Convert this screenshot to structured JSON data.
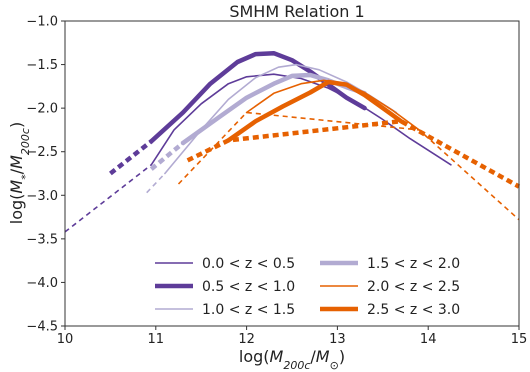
{
  "chart_data": {
    "type": "line",
    "title": "SMHM Relation 1",
    "xlabel": "log(M_200c/M_⊙)",
    "ylabel": "log(M_*/M_200c)",
    "xlim": [
      10,
      15
    ],
    "ylim": [
      -4.5,
      -1.0
    ],
    "x_ticks": [
      10,
      11,
      12,
      13,
      14,
      15
    ],
    "y_ticks": [
      -4.5,
      -4.0,
      -3.5,
      -3.0,
      -2.5,
      -2.0,
      -1.5,
      -1.0
    ],
    "x_tick_labels": [
      "10",
      "11",
      "12",
      "13",
      "14",
      "15"
    ],
    "y_tick_labels": [
      "−4.5",
      "−4.0",
      "−3.5",
      "−3.0",
      "−2.5",
      "−2.0",
      "−1.5",
      "−1.0"
    ],
    "legend_position": "lower-center",
    "series": [
      {
        "name": "0.0 < z < 0.5",
        "color": "#5e3c99",
        "weight": "thin",
        "solid": [
          [
            10.95,
            -2.65
          ],
          [
            11.2,
            -2.25
          ],
          [
            11.5,
            -1.95
          ],
          [
            11.8,
            -1.72
          ],
          [
            12.0,
            -1.64
          ],
          [
            12.3,
            -1.61
          ],
          [
            12.6,
            -1.66
          ],
          [
            12.9,
            -1.77
          ],
          [
            13.2,
            -1.93
          ],
          [
            13.5,
            -2.13
          ],
          [
            13.8,
            -2.35
          ],
          [
            14.1,
            -2.55
          ],
          [
            14.25,
            -2.65
          ]
        ],
        "dashed": [
          [
            10.0,
            -3.42
          ],
          [
            10.95,
            -2.65
          ]
        ]
      },
      {
        "name": "0.5 < z < 1.0",
        "color": "#5e3c99",
        "weight": "thick",
        "solid": [
          [
            10.95,
            -2.38
          ],
          [
            11.3,
            -2.05
          ],
          [
            11.6,
            -1.72
          ],
          [
            11.9,
            -1.47
          ],
          [
            12.1,
            -1.38
          ],
          [
            12.3,
            -1.37
          ],
          [
            12.5,
            -1.45
          ],
          [
            12.7,
            -1.58
          ],
          [
            12.9,
            -1.73
          ],
          [
            13.1,
            -1.88
          ],
          [
            13.3,
            -2.0
          ]
        ],
        "dashed": [
          [
            10.5,
            -2.75
          ],
          [
            10.95,
            -2.38
          ]
        ]
      },
      {
        "name": "1.0 < z < 1.5",
        "color": "#b2abd2",
        "weight": "thin",
        "solid": [
          [
            11.1,
            -2.75
          ],
          [
            11.5,
            -2.25
          ],
          [
            11.8,
            -1.9
          ],
          [
            12.1,
            -1.65
          ],
          [
            12.35,
            -1.53
          ],
          [
            12.55,
            -1.5
          ],
          [
            12.8,
            -1.56
          ],
          [
            13.1,
            -1.7
          ],
          [
            13.35,
            -1.85
          ],
          [
            13.65,
            -2.05
          ]
        ],
        "dashed": [
          [
            10.9,
            -2.97
          ],
          [
            11.1,
            -2.75
          ]
        ]
      },
      {
        "name": "1.5 < z < 2.0",
        "color": "#b2abd2",
        "weight": "thick",
        "solid": [
          [
            11.3,
            -2.4
          ],
          [
            11.7,
            -2.1
          ],
          [
            12.0,
            -1.88
          ],
          [
            12.3,
            -1.72
          ],
          [
            12.5,
            -1.63
          ],
          [
            12.7,
            -1.62
          ],
          [
            12.9,
            -1.68
          ],
          [
            13.1,
            -1.76
          ],
          [
            13.3,
            -1.83
          ]
        ],
        "dashed": [
          [
            10.95,
            -2.7
          ],
          [
            11.3,
            -2.4
          ]
        ]
      },
      {
        "name": "2.0 < z < 2.5",
        "color": "#e66101",
        "weight": "thin",
        "solid": [
          [
            12.0,
            -2.05
          ],
          [
            12.3,
            -1.83
          ],
          [
            12.6,
            -1.72
          ],
          [
            12.85,
            -1.68
          ],
          [
            13.1,
            -1.73
          ],
          [
            13.3,
            -1.82
          ],
          [
            13.6,
            -2.02
          ],
          [
            13.9,
            -2.25
          ]
        ],
        "dashed": [
          [
            11.25,
            -2.87
          ],
          [
            12.0,
            -2.05
          ],
          [
            13.9,
            -2.25
          ],
          [
            15.0,
            -3.28
          ]
        ]
      },
      {
        "name": "2.5 < z < 3.0",
        "color": "#e66101",
        "weight": "thick",
        "solid": [
          [
            11.8,
            -2.37
          ],
          [
            12.1,
            -2.15
          ],
          [
            12.4,
            -1.98
          ],
          [
            12.7,
            -1.82
          ],
          [
            12.9,
            -1.7
          ],
          [
            13.1,
            -1.73
          ],
          [
            13.3,
            -1.85
          ],
          [
            13.5,
            -2.0
          ],
          [
            13.7,
            -2.15
          ]
        ],
        "dashed": [
          [
            11.35,
            -2.6
          ],
          [
            11.8,
            -2.37
          ],
          [
            13.7,
            -2.15
          ],
          [
            15.0,
            -2.9
          ]
        ]
      }
    ]
  }
}
